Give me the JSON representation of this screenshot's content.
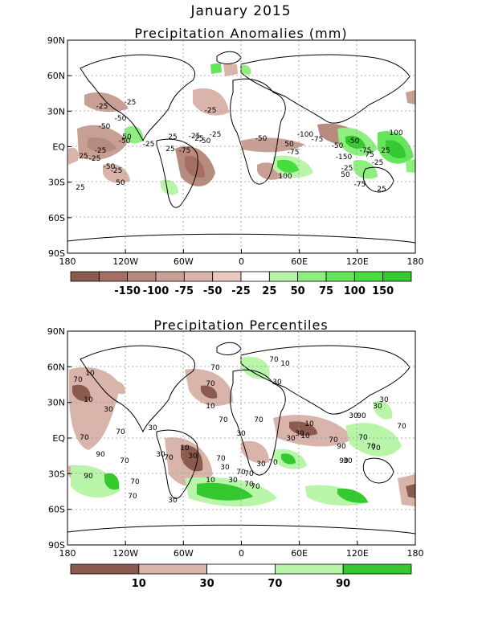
{
  "title": "January 2015",
  "panels": [
    {
      "id": "anomalies",
      "title": "Precipitation Anomalies (mm)",
      "lat_labels": [
        "90N",
        "60N",
        "30N",
        "EQ",
        "30S",
        "60S",
        "90S"
      ],
      "lon_labels": [
        "180",
        "120W",
        "60W",
        "0",
        "60E",
        "120E",
        "180"
      ],
      "colorbar": {
        "colors": [
          "#8b5a4e",
          "#a46f62",
          "#b78a7e",
          "#c89f94",
          "#d8b4aa",
          "#e9c8bf",
          "#ffffff",
          "#b8f5a8",
          "#8eee80",
          "#66e45c",
          "#48dc40",
          "#34c92f"
        ],
        "labels": [
          "-150",
          "-100",
          "-75",
          "-50",
          "-25",
          "25",
          "50",
          "75",
          "100",
          "150"
        ]
      },
      "contour_labels": [
        "-25",
        "-50",
        "-50",
        "-25",
        "-25",
        "-50",
        "-25",
        "-25",
        "-50",
        "-75",
        "-25",
        "25",
        "50",
        "25",
        "25",
        "50",
        "-75",
        "-100",
        "-50",
        "-150",
        "-25",
        "-25",
        "25",
        "50",
        "100",
        "-50",
        "-75",
        "-25",
        "-25",
        "25",
        "100",
        "-50",
        "-75",
        "25",
        "-25",
        "25",
        "75",
        "50",
        "-75",
        "-50"
      ]
    },
    {
      "id": "percentiles",
      "title": "Precipitation Percentiles",
      "lat_labels": [
        "90N",
        "60N",
        "30N",
        "EQ",
        "30S",
        "60S",
        "90S"
      ],
      "lon_labels": [
        "180",
        "120W",
        "60W",
        "0",
        "60E",
        "120E",
        "180"
      ],
      "colorbar": {
        "colors": [
          "#8b5a4e",
          "#d8b4aa",
          "#ffffff",
          "#b8f5a8",
          "#34c92f"
        ],
        "labels": [
          "10",
          "30",
          "70",
          "90"
        ]
      },
      "contour_labels": [
        "10",
        "70",
        "10",
        "30",
        "70",
        "70",
        "30",
        "30",
        "10",
        "70",
        "70",
        "30",
        "70",
        "70",
        "10",
        "70",
        "30",
        "10",
        "30",
        "30",
        "70",
        "90",
        "70",
        "30",
        "90",
        "70",
        "10",
        "30",
        "70",
        "70",
        "70",
        "30",
        "70",
        "90",
        "70",
        "30",
        "30",
        "70",
        "70",
        "70",
        "90",
        "70",
        "30",
        "10",
        "70",
        "70",
        "30",
        "90",
        "30",
        "30",
        "70",
        "10"
      ]
    }
  ]
}
